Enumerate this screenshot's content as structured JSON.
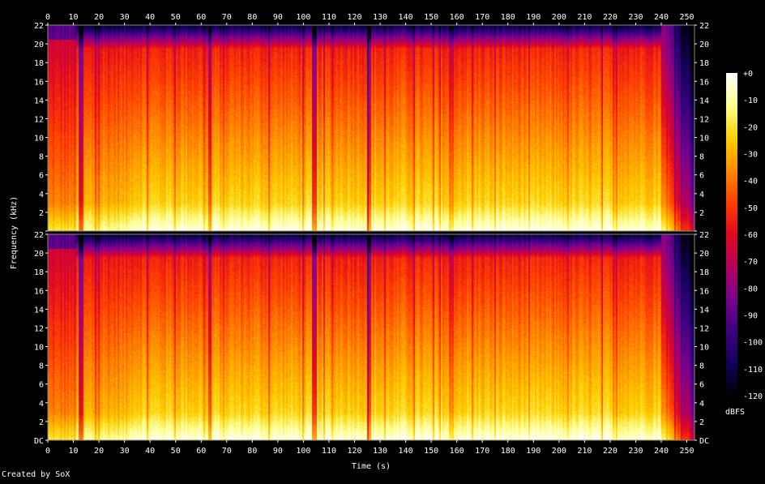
{
  "chart_data": {
    "type": "heatmap",
    "title": "",
    "xlabel": "Time (s)",
    "ylabel": "Frequency (kHz)",
    "xlim": [
      0,
      253
    ],
    "ylim": [
      0,
      22
    ],
    "x_ticks": [
      0,
      10,
      20,
      30,
      40,
      50,
      60,
      70,
      80,
      90,
      100,
      110,
      120,
      130,
      140,
      150,
      160,
      170,
      180,
      190,
      200,
      210,
      220,
      230,
      240,
      250
    ],
    "x_tick_labels": [
      "0",
      "10",
      "20",
      "30",
      "40",
      "50",
      "60",
      "70",
      "80",
      "90",
      "100",
      "110",
      "120",
      "130",
      "140",
      "150",
      "160",
      "170",
      "180",
      "190",
      "200",
      "210",
      "220",
      "230",
      "240",
      "250"
    ],
    "y_ticks": [
      0,
      2,
      4,
      6,
      8,
      10,
      12,
      14,
      16,
      18,
      20,
      22
    ],
    "y_tick_labels": [
      "DC",
      "2",
      "4",
      "6",
      "8",
      "10",
      "12",
      "14",
      "16",
      "18",
      "20",
      "22"
    ],
    "channels": [
      "Channel 1",
      "Channel 2"
    ],
    "colorbar": {
      "label": "dBFS",
      "ticks": [
        0,
        -10,
        -20,
        -30,
        -40,
        -50,
        -60,
        -70,
        -80,
        -90,
        -100,
        -110,
        -120
      ],
      "tick_labels": [
        "+0",
        "-10",
        "-20",
        "-30",
        "-40",
        "-50",
        "-60",
        "-70",
        "-80",
        "-90",
        "-100",
        "-110",
        "-120"
      ],
      "colors": [
        "#000000",
        "#12005a",
        "#3c0080",
        "#7a008e",
        "#b40060",
        "#e00820",
        "#ff4000",
        "#ff8c00",
        "#ffd000",
        "#ffff90",
        "#ffffff"
      ]
    },
    "colormap": "sox-hot",
    "grid": false
  },
  "footer": "Created by SoX"
}
